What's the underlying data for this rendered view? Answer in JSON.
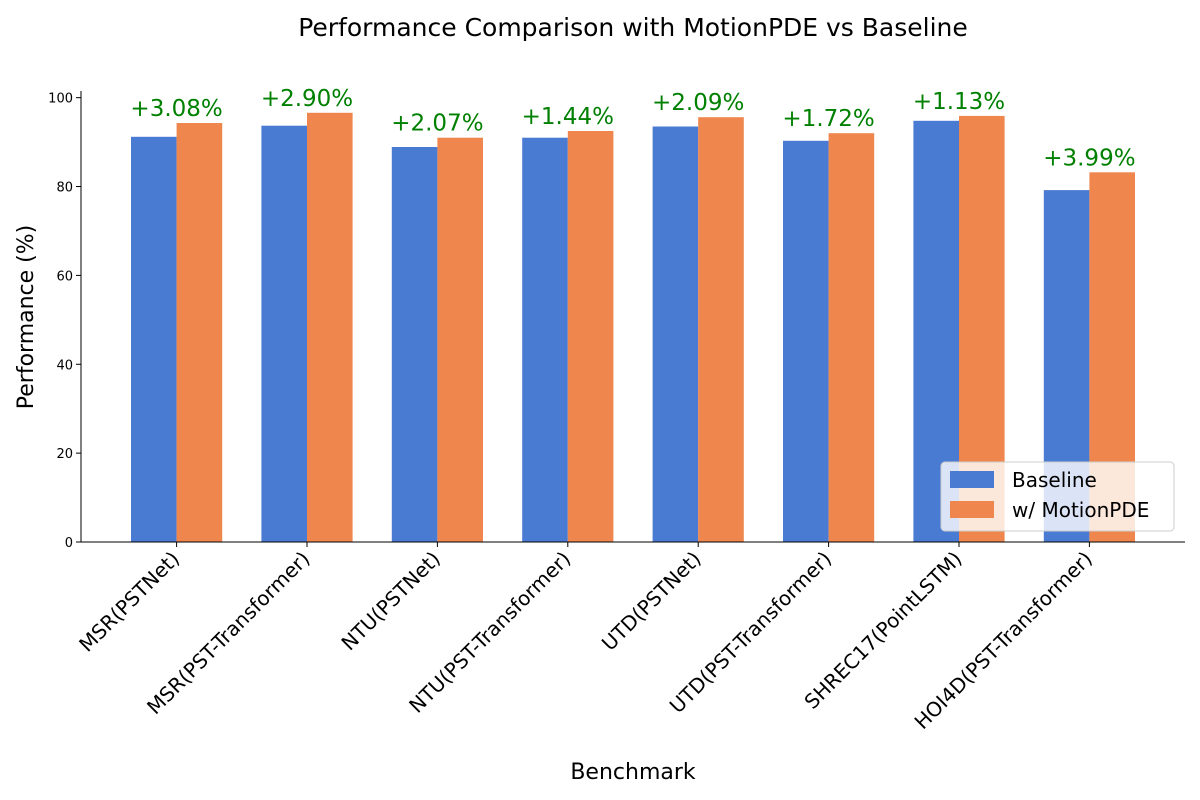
{
  "chart_data": {
    "type": "bar",
    "title": "Performance Comparison with MotionPDE vs Baseline",
    "xlabel": "Benchmark",
    "ylabel": "Performance (%)",
    "ylim": [
      0,
      101.5
    ],
    "yticks": [
      0,
      20,
      40,
      60,
      80,
      100
    ],
    "grid": false,
    "legend_position": "lower-right",
    "categories": [
      "MSR(PSTNet)",
      "MSR(PST-Transformer)",
      "NTU(PSTNet)",
      "NTU(PST-Transformer)",
      "UTD(PSTNet)",
      "UTD(PST-Transformer)",
      "SHREC17(PointLSTM)",
      "HOI4D(PST-Transformer)"
    ],
    "series": [
      {
        "name": "Baseline",
        "color": "#4a7bd2",
        "values": [
          91.2,
          93.7,
          88.9,
          91.0,
          93.5,
          90.3,
          94.8,
          79.2
        ]
      },
      {
        "name": "w/ MotionPDE",
        "color": "#ef864e",
        "values": [
          94.3,
          96.6,
          91.0,
          92.5,
          95.6,
          92.0,
          95.9,
          83.2
        ]
      }
    ],
    "annotations": [
      "+3.08%",
      "+2.90%",
      "+2.07%",
      "+1.44%",
      "+2.09%",
      "+1.72%",
      "+1.13%",
      "+3.99%"
    ],
    "annotation_color": "#008000"
  }
}
